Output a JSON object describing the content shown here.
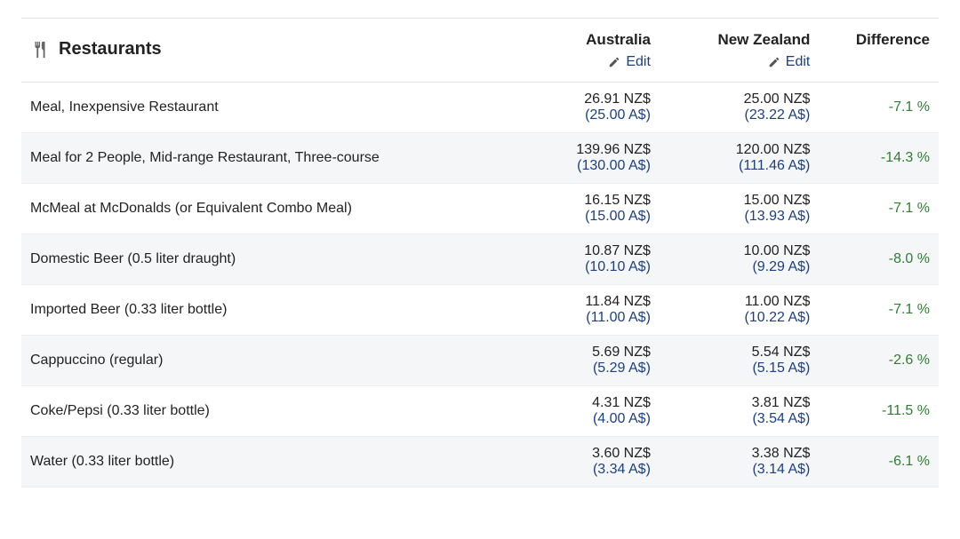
{
  "category": {
    "title": "Restaurants",
    "icon": "utensils-icon"
  },
  "columns": {
    "col1": {
      "label": "Australia",
      "edit_label": "Edit"
    },
    "col2": {
      "label": "New Zealand",
      "edit_label": "Edit"
    },
    "diff": {
      "label": "Difference"
    }
  },
  "colors": {
    "text": "#222222",
    "secondary_price": "#1b4082",
    "link": "#1b4082",
    "diff_negative": "#2f7d32",
    "row_alt_bg": "#f5f6f8",
    "border": "#e2e2e2",
    "background": "#ffffff"
  },
  "typography": {
    "header_fontsize_pt": 15,
    "body_fontsize_pt": 12,
    "font_family": "Arial"
  },
  "table": {
    "type": "table",
    "rows": [
      {
        "name": "Meal, Inexpensive Restaurant",
        "col1_primary": "26.91 NZ$",
        "col1_secondary": "(25.00 A$)",
        "col2_primary": "25.00 NZ$",
        "col2_secondary": "(23.22 A$)",
        "diff": "-7.1 %"
      },
      {
        "name": "Meal for 2 People, Mid-range Restaurant, Three-course",
        "col1_primary": "139.96 NZ$",
        "col1_secondary": "(130.00 A$)",
        "col2_primary": "120.00 NZ$",
        "col2_secondary": "(111.46 A$)",
        "diff": "-14.3 %"
      },
      {
        "name": "McMeal at McDonalds (or Equivalent Combo Meal)",
        "col1_primary": "16.15 NZ$",
        "col1_secondary": "(15.00 A$)",
        "col2_primary": "15.00 NZ$",
        "col2_secondary": "(13.93 A$)",
        "diff": "-7.1 %"
      },
      {
        "name": "Domestic Beer (0.5 liter draught)",
        "col1_primary": "10.87 NZ$",
        "col1_secondary": "(10.10 A$)",
        "col2_primary": "10.00 NZ$",
        "col2_secondary": "(9.29 A$)",
        "diff": "-8.0 %"
      },
      {
        "name": "Imported Beer (0.33 liter bottle)",
        "col1_primary": "11.84 NZ$",
        "col1_secondary": "(11.00 A$)",
        "col2_primary": "11.00 NZ$",
        "col2_secondary": "(10.22 A$)",
        "diff": "-7.1 %"
      },
      {
        "name": "Cappuccino (regular)",
        "col1_primary": "5.69 NZ$",
        "col1_secondary": "(5.29 A$)",
        "col2_primary": "5.54 NZ$",
        "col2_secondary": "(5.15 A$)",
        "diff": "-2.6 %"
      },
      {
        "name": "Coke/Pepsi (0.33 liter bottle)",
        "col1_primary": "4.31 NZ$",
        "col1_secondary": "(4.00 A$)",
        "col2_primary": "3.81 NZ$",
        "col2_secondary": "(3.54 A$)",
        "diff": "-11.5 %"
      },
      {
        "name": "Water (0.33 liter bottle)",
        "col1_primary": "3.60 NZ$",
        "col1_secondary": "(3.34 A$)",
        "col2_primary": "3.38 NZ$",
        "col2_secondary": "(3.14 A$)",
        "diff": "-6.1 %"
      }
    ]
  }
}
